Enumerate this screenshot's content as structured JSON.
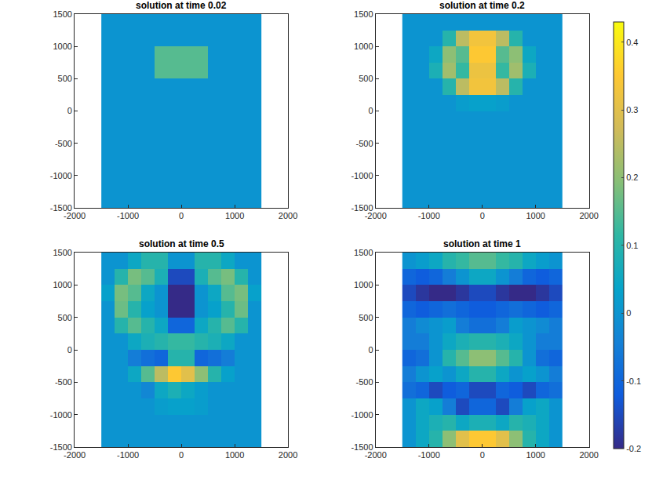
{
  "chart_data": [
    {
      "type": "heatmap",
      "title": "solution at time 0.02",
      "x": [
        -1375,
        -1125,
        -875,
        -625,
        -375,
        -125,
        125,
        375,
        625,
        875,
        1125,
        1375
      ],
      "y": [
        -1375,
        -1125,
        -875,
        -625,
        -375,
        -125,
        125,
        375,
        625,
        875,
        1125,
        1375
      ],
      "z": [
        [
          0,
          0,
          0,
          0,
          0,
          0,
          0,
          0,
          0,
          0,
          0,
          0
        ],
        [
          0,
          0,
          0,
          0,
          0,
          0,
          0,
          0,
          0,
          0,
          0,
          0
        ],
        [
          0,
          0,
          0,
          0,
          0,
          0,
          0,
          0,
          0,
          0,
          0,
          0
        ],
        [
          0,
          0,
          0,
          0,
          0,
          0,
          0,
          0,
          0,
          0,
          0,
          0
        ],
        [
          0,
          0,
          0,
          0,
          0,
          0,
          0,
          0,
          0,
          0,
          0,
          0
        ],
        [
          0,
          0,
          0,
          0,
          0,
          0,
          0,
          0,
          0,
          0,
          0,
          0
        ],
        [
          0,
          0,
          0,
          0,
          0,
          0,
          0,
          0,
          0,
          0,
          0,
          0
        ],
        [
          0,
          0,
          0,
          0,
          0,
          0,
          0,
          0,
          0,
          0,
          0,
          0
        ],
        [
          0,
          0,
          0,
          0,
          0.15,
          0.15,
          0.15,
          0.15,
          0,
          0,
          0,
          0
        ],
        [
          0,
          0,
          0,
          0,
          0.15,
          0.15,
          0.15,
          0.15,
          0,
          0,
          0,
          0
        ],
        [
          0,
          0,
          0,
          0,
          0,
          0,
          0,
          0,
          0,
          0,
          0,
          0
        ],
        [
          0,
          0,
          0,
          0,
          0,
          0,
          0,
          0,
          0,
          0,
          0,
          0
        ]
      ],
      "xlim": [
        -2000,
        2000
      ],
      "xticks": [
        -2000,
        -1000,
        0,
        1000,
        2000
      ],
      "ylim": [
        -1500,
        1500
      ],
      "yticks": [
        -1500,
        -1000,
        -500,
        0,
        500,
        1000,
        1500
      ],
      "zlim": [
        -0.2,
        0.43
      ],
      "zticks": [
        -0.2,
        -0.1,
        0,
        0.1,
        0.2,
        0.3,
        0.4
      ]
    },
    {
      "type": "heatmap",
      "title": "solution at time 0.2",
      "x": [
        -1375,
        -1125,
        -875,
        -625,
        -375,
        -125,
        125,
        375,
        625,
        875,
        1125,
        1375
      ],
      "y": [
        -1375,
        -1125,
        -875,
        -625,
        -375,
        -125,
        125,
        375,
        625,
        875,
        1125,
        1375
      ],
      "z": [
        [
          0,
          0,
          0,
          0,
          0,
          0,
          0,
          0,
          0,
          0,
          0,
          0
        ],
        [
          0,
          0,
          0,
          0,
          0,
          0,
          0,
          0,
          0,
          0,
          0,
          0
        ],
        [
          0,
          0,
          0,
          0,
          0,
          0,
          0,
          0,
          0,
          0,
          0,
          0
        ],
        [
          0,
          0,
          0,
          0,
          0,
          0,
          0,
          0,
          0,
          0,
          0,
          0
        ],
        [
          0,
          0,
          0,
          0,
          0,
          0,
          0,
          0,
          0,
          0,
          0,
          0
        ],
        [
          0,
          0,
          0,
          0,
          0,
          0,
          0,
          0,
          0,
          0,
          0,
          0
        ],
        [
          0,
          0,
          0,
          0,
          0.02,
          0.03,
          0.03,
          0.02,
          0,
          0,
          0,
          0
        ],
        [
          0,
          0,
          0,
          0.1,
          0.25,
          0.33,
          0.33,
          0.25,
          0.1,
          0,
          0,
          0
        ],
        [
          0,
          0,
          0.08,
          0.22,
          0.12,
          0.32,
          0.32,
          0.12,
          0.22,
          0.08,
          0,
          0
        ],
        [
          0,
          0,
          0.05,
          0.2,
          0.15,
          0.35,
          0.35,
          0.15,
          0.2,
          0.05,
          0,
          0
        ],
        [
          0,
          0,
          0,
          0.1,
          0.25,
          0.33,
          0.33,
          0.25,
          0.1,
          0,
          0,
          0
        ],
        [
          0,
          0,
          0,
          0,
          0,
          0,
          0,
          0,
          0,
          0,
          0,
          0
        ]
      ],
      "xlim": [
        -2000,
        2000
      ],
      "xticks": [
        -2000,
        -1000,
        0,
        1000,
        2000
      ],
      "ylim": [
        -1500,
        1500
      ],
      "yticks": [
        -1500,
        -1000,
        -500,
        0,
        500,
        1000,
        1500
      ],
      "zlim": [
        -0.2,
        0.43
      ],
      "zticks": [
        -0.2,
        -0.1,
        0,
        0.1,
        0.2,
        0.3,
        0.4
      ]
    },
    {
      "type": "heatmap",
      "title": "solution at time 0.5",
      "x": [
        -1375,
        -1125,
        -875,
        -625,
        -375,
        -125,
        125,
        375,
        625,
        875,
        1125,
        1375
      ],
      "y": [
        -1375,
        -1125,
        -875,
        -625,
        -375,
        -125,
        125,
        375,
        625,
        875,
        1125,
        1375
      ],
      "z": [
        [
          0,
          0,
          0,
          0,
          0,
          0,
          0,
          0,
          0,
          0,
          0,
          0
        ],
        [
          0,
          0,
          0,
          0,
          0,
          0,
          0,
          0,
          0,
          0,
          0,
          0
        ],
        [
          0,
          0,
          0,
          0,
          0.02,
          0.03,
          0.03,
          0.02,
          0,
          0,
          0,
          0
        ],
        [
          0,
          0,
          0,
          -0.03,
          0.05,
          0.08,
          0.05,
          0.02,
          0,
          0,
          0,
          0
        ],
        [
          0,
          0,
          0.05,
          0.15,
          0.25,
          0.35,
          0.3,
          0.2,
          0.1,
          0.03,
          0,
          0
        ],
        [
          0,
          0,
          -0.05,
          -0.08,
          -0.1,
          0.1,
          0.1,
          -0.1,
          -0.08,
          -0.05,
          0,
          0
        ],
        [
          0,
          0,
          0.05,
          0.08,
          0.1,
          0.12,
          0.12,
          0.1,
          0.08,
          0.05,
          0,
          0
        ],
        [
          0,
          0.1,
          0.15,
          0.1,
          0.05,
          -0.1,
          -0.1,
          0.05,
          0.1,
          0.15,
          0.1,
          0
        ],
        [
          0,
          0.17,
          0.1,
          0.03,
          0,
          -0.2,
          -0.2,
          0,
          0.03,
          0.1,
          0.17,
          0
        ],
        [
          0.03,
          0.18,
          0.15,
          0.05,
          0,
          -0.2,
          -0.2,
          0,
          0.05,
          0.15,
          0.18,
          0.03
        ],
        [
          0,
          0.1,
          0.18,
          0.15,
          0.08,
          -0.15,
          -0.15,
          0.08,
          0.15,
          0.18,
          0.1,
          0
        ],
        [
          0,
          0,
          0.05,
          0.1,
          0.1,
          0,
          0,
          0.1,
          0.1,
          0.05,
          0,
          0
        ]
      ],
      "xlim": [
        -2000,
        2000
      ],
      "xticks": [
        -2000,
        -1000,
        0,
        1000,
        2000
      ],
      "ylim": [
        -1500,
        1500
      ],
      "yticks": [
        -1500,
        -1000,
        -500,
        0,
        500,
        1000,
        1500
      ],
      "zlim": [
        -0.2,
        0.43
      ],
      "zticks": [
        -0.2,
        -0.1,
        0,
        0.1,
        0.2,
        0.3,
        0.4
      ]
    },
    {
      "type": "heatmap",
      "title": "solution at time 1",
      "x": [
        -1375,
        -1125,
        -875,
        -625,
        -375,
        -125,
        125,
        375,
        625,
        875,
        1125,
        1375
      ],
      "y": [
        -1375,
        -1125,
        -875,
        -625,
        -375,
        -125,
        125,
        375,
        625,
        875,
        1125,
        1375
      ],
      "z": [
        [
          0,
          0.05,
          0.1,
          0.2,
          0.3,
          0.35,
          0.35,
          0.3,
          0.2,
          0.1,
          0.05,
          0
        ],
        [
          0,
          0.05,
          0.08,
          0.1,
          0.05,
          0.08,
          0.08,
          0.05,
          0.1,
          0.08,
          0.05,
          0
        ],
        [
          0,
          0.05,
          0.03,
          -0.05,
          -0.15,
          -0.1,
          -0.1,
          -0.15,
          -0.05,
          0.03,
          0.05,
          0
        ],
        [
          -0.08,
          -0.1,
          -0.15,
          -0.12,
          -0.1,
          -0.15,
          -0.15,
          -0.1,
          -0.12,
          -0.15,
          -0.1,
          -0.08
        ],
        [
          -0.05,
          0,
          0.03,
          0,
          0.05,
          0.1,
          0.1,
          0.05,
          0,
          0.03,
          0,
          -0.05
        ],
        [
          -0.1,
          -0.08,
          0,
          0.1,
          0.15,
          0.2,
          0.2,
          0.15,
          0.1,
          0,
          -0.08,
          -0.1
        ],
        [
          -0.05,
          -0.05,
          0,
          0.05,
          0.08,
          0.1,
          0.1,
          0.08,
          0.05,
          0,
          -0.05,
          -0.05
        ],
        [
          -0.05,
          -0.02,
          0,
          0.02,
          -0.05,
          -0.08,
          -0.08,
          -0.05,
          0.02,
          0,
          -0.02,
          -0.05
        ],
        [
          -0.1,
          -0.12,
          -0.1,
          -0.08,
          -0.1,
          -0.12,
          -0.12,
          -0.1,
          -0.08,
          -0.1,
          -0.12,
          -0.1
        ],
        [
          -0.15,
          -0.18,
          -0.2,
          -0.2,
          -0.18,
          -0.15,
          -0.15,
          -0.18,
          -0.2,
          -0.2,
          -0.18,
          -0.15
        ],
        [
          -0.1,
          -0.12,
          -0.1,
          -0.05,
          0,
          0.05,
          0.05,
          0,
          -0.05,
          -0.1,
          -0.12,
          -0.1
        ],
        [
          0,
          0.02,
          0.05,
          0.1,
          0.12,
          0.15,
          0.15,
          0.12,
          0.1,
          0.05,
          0.02,
          0
        ]
      ],
      "xlim": [
        -2000,
        2000
      ],
      "xticks": [
        -2000,
        -1000,
        0,
        1000,
        2000
      ],
      "ylim": [
        -1500,
        1500
      ],
      "yticks": [
        -1500,
        -1000,
        -500,
        0,
        500,
        1000,
        1500
      ],
      "zlim": [
        -0.2,
        0.43
      ],
      "zticks": [
        -0.2,
        -0.1,
        0,
        0.1,
        0.2,
        0.3,
        0.4
      ]
    }
  ]
}
